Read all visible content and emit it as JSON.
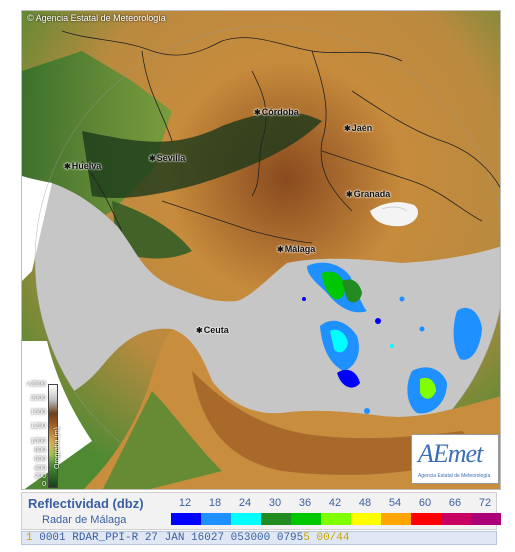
{
  "map": {
    "copyright": "© Agencia Estatal de Meteorología",
    "cities": [
      {
        "name": "Córdoba"
      },
      {
        "name": "Jaén"
      },
      {
        "name": "Huelva"
      },
      {
        "name": "Sevilla"
      },
      {
        "name": "Granada"
      },
      {
        "name": "Málaga"
      },
      {
        "name": "Ceuta"
      }
    ],
    "colors": {
      "land_low": "#2f6d2a",
      "land_mid": "#c78b3c",
      "land_high": "#8a4a1f",
      "sea_radar_range": "#c6c6c6",
      "outside_range": "#ffffff"
    }
  },
  "orography_scale": {
    "label": "Orografía (m)",
    "values": [
      ">2500",
      "2000",
      "1500",
      "1250",
      "1000",
      "800",
      "600",
      "400",
      "200",
      "0"
    ]
  },
  "logo": {
    "text": "AEmet",
    "subtitle": "Agencia Estatal de Meteorología"
  },
  "legend": {
    "title": "Reflectividad (dbz)",
    "subtitle": "Radar de Málaga",
    "values": [
      "12",
      "18",
      "24",
      "30",
      "36",
      "42",
      "48",
      "54",
      "60",
      "66",
      "72"
    ],
    "colors": [
      "#0000ff",
      "#1e90ff",
      "#00ffff",
      "#228b22",
      "#00c800",
      "#7fff00",
      "#ffff00",
      "#ffa500",
      "#ff0000",
      "#c80064",
      "#aa0078"
    ]
  },
  "status": {
    "indicator": "1",
    "text": "0001 RDAR_PPI-R   27 JAN 16027 053000 0795",
    "tail": "5 00/44"
  }
}
